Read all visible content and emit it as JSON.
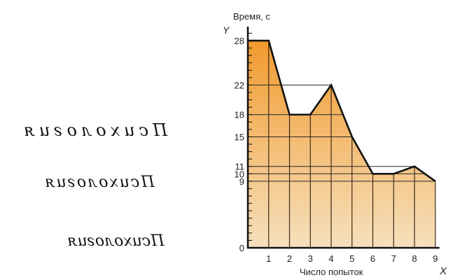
{
  "handwriting_samples": [
    {
      "text": "Психология",
      "mirrored": true
    },
    {
      "text": "Психология",
      "mirrored": true
    },
    {
      "text": "Психология",
      "mirrored": true
    }
  ],
  "chart_data": {
    "type": "area",
    "title": "",
    "ylabel": "Время, с",
    "xlabel": "Число попыток",
    "y_axis_letter": "Y",
    "x_axis_letter": "X",
    "x": [
      0,
      1,
      2,
      3,
      4,
      5,
      6,
      7,
      8,
      9
    ],
    "values": [
      28,
      28,
      18,
      18,
      22,
      15,
      10,
      10,
      11,
      9
    ],
    "x_tick_labels": [
      "1",
      "2",
      "3",
      "4",
      "5",
      "6",
      "7",
      "8",
      "9"
    ],
    "y_tick_labels": [
      "0",
      "9",
      "10",
      "11",
      "15",
      "18",
      "22",
      "28"
    ],
    "xlim": [
      0,
      9
    ],
    "ylim": [
      0,
      29
    ],
    "grid": true,
    "fill_gradient": [
      "#f19a2e",
      "#f6e0bd"
    ],
    "line_color": "#111111"
  }
}
